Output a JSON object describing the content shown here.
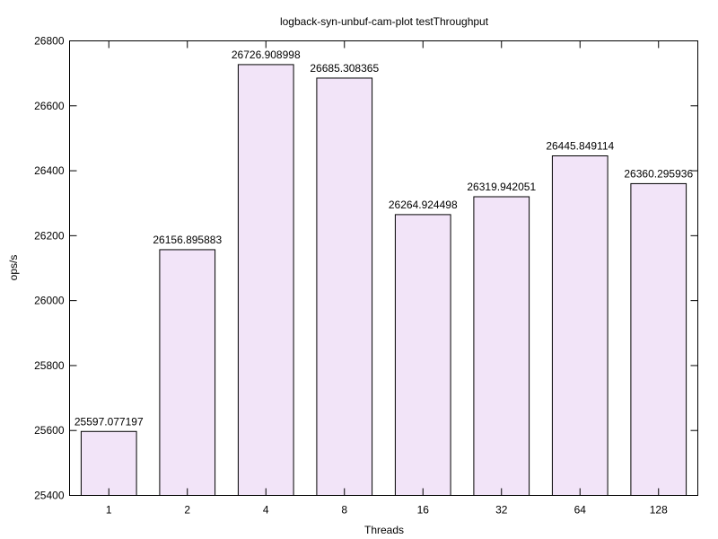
{
  "chart_data": {
    "type": "bar",
    "title": "logback-syn-unbuf-cam-plot testThroughput",
    "xlabel": "Threads",
    "ylabel": "ops/s",
    "categories": [
      "1",
      "2",
      "4",
      "8",
      "16",
      "32",
      "64",
      "128"
    ],
    "values": [
      25597.077197,
      26156.895883,
      26726.908998,
      26685.308365,
      26264.924498,
      26319.942051,
      26445.849114,
      26360.295936
    ],
    "value_labels": [
      "25597.077197",
      "26156.895883",
      "26726.908998",
      "26685.308365",
      "26264.924498",
      "26319.942051",
      "26445.849114",
      "26360.295936"
    ],
    "ylim": [
      25400,
      26800
    ],
    "yticks": [
      25400,
      25600,
      25800,
      26000,
      26200,
      26400,
      26600,
      26800
    ],
    "ytick_labels": [
      "25400",
      "25600",
      "25800",
      "26000",
      "26200",
      "26400",
      "26600",
      "26800"
    ],
    "grid": false,
    "legend": "none",
    "colors": {
      "bar_fill": "#f2e4f8",
      "bar_stroke": "#000000",
      "axis": "#000000"
    }
  }
}
